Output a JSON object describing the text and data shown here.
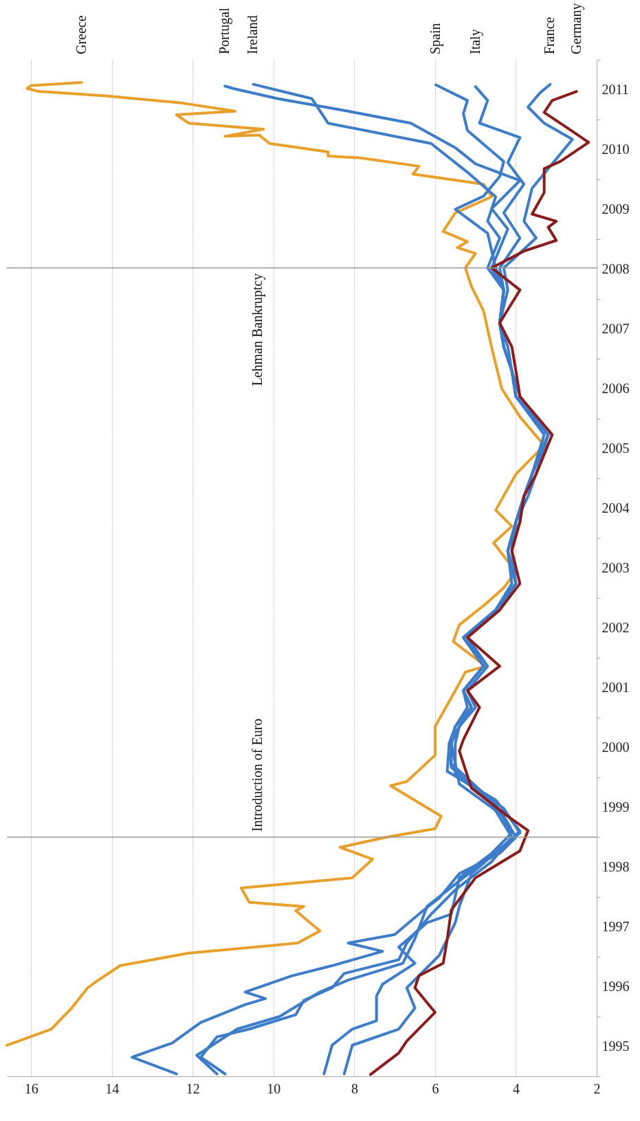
{
  "chart_data": {
    "type": "line",
    "ylim": [
      1995,
      2012
    ],
    "xlim": [
      16.6,
      2
    ],
    "xticks": [
      16,
      14,
      12,
      10,
      8,
      6,
      4,
      2
    ],
    "yticks": [
      {
        "value": 1995,
        "label": null
      },
      {
        "value": 1995.5,
        "label": "1995"
      },
      {
        "value": 1996,
        "label": null
      },
      {
        "value": 1996.5,
        "label": "1996"
      },
      {
        "value": 1997,
        "label": null
      },
      {
        "value": 1997.5,
        "label": "1997"
      },
      {
        "value": 1998,
        "label": null
      },
      {
        "value": 1998.5,
        "label": "1998"
      },
      {
        "value": 1999,
        "label": null
      },
      {
        "value": 1999.5,
        "label": "1999"
      },
      {
        "value": 2000,
        "label": null
      },
      {
        "value": 2000.5,
        "label": "2000"
      },
      {
        "value": 2001,
        "label": null
      },
      {
        "value": 2001.5,
        "label": "2001"
      },
      {
        "value": 2002,
        "label": null
      },
      {
        "value": 2002.5,
        "label": "2002"
      },
      {
        "value": 2003,
        "label": null
      },
      {
        "value": 2003.5,
        "label": "2003"
      },
      {
        "value": 2004,
        "label": null
      },
      {
        "value": 2004.5,
        "label": "2004"
      },
      {
        "value": 2005,
        "label": null
      },
      {
        "value": 2005.5,
        "label": "2005"
      },
      {
        "value": 2006,
        "label": null
      },
      {
        "value": 2006.5,
        "label": "2006"
      },
      {
        "value": 2007,
        "label": null
      },
      {
        "value": 2007.5,
        "label": "2007"
      },
      {
        "value": 2008,
        "label": null
      },
      {
        "value": 2008.5,
        "label": "2008"
      },
      {
        "value": 2009,
        "label": null
      },
      {
        "value": 2009.5,
        "label": "2009"
      },
      {
        "value": 2010,
        "label": null
      },
      {
        "value": 2010.5,
        "label": "2010"
      },
      {
        "value": 2011,
        "label": null
      },
      {
        "value": 2011.5,
        "label": "2011"
      },
      {
        "value": 2012,
        "label": null
      }
    ],
    "grid": "x",
    "ref_lines": [
      {
        "axis": "y",
        "value": 1999,
        "label": "Introduction of Euro",
        "color": "#999999"
      },
      {
        "axis": "y",
        "value": 2008.52,
        "label": "Lehman Bankruptcy",
        "color": "#999999"
      }
    ],
    "series": [
      {
        "name": "Greece",
        "color": "#e8a02a",
        "values": [
          1995.52,
          1995.79,
          1996.14,
          1996.48,
          1996.58,
          1996.85,
          1997.06,
          1997.19,
          1997.23,
          1997.43,
          1997.77,
          1997.84,
          1997.91,
          1998.15,
          1998.32,
          1998.63,
          1998.83,
          1999.0,
          1999.14,
          1999.35,
          1999.86,
          1999.93,
          2000.37,
          2000.85,
          2001.45,
          2001.76,
          2001.86,
          2002.27,
          2002.55,
          2002.9,
          2003.17,
          2003.44,
          2003.92,
          2004.2,
          2004.47,
          2005.07,
          2005.55,
          2006.03,
          2006.5,
          2006.64,
          2007.19,
          2007.8,
          2008.21,
          2008.52,
          2008.76,
          2008.86,
          2008.96,
          2009.13,
          2009.44,
          2009.71,
          2009.92,
          2010.09,
          2010.22,
          2010.36,
          2010.39,
          2010.46,
          2010.6,
          2010.74,
          2010.72,
          2010.84,
          2010.94,
          2011.08,
          2011.14,
          2011.28,
          2011.4,
          2011.47,
          2011.52,
          2011.57,
          2011.62
        ],
        "x": [
          16.6,
          15.5,
          15.0,
          14.6,
          14.4,
          13.8,
          12.1,
          10.0,
          9.4,
          8.85,
          9.45,
          9.25,
          10.6,
          10.8,
          8.05,
          7.55,
          8.35,
          7.2,
          6.0,
          5.85,
          7.1,
          6.7,
          6.0,
          6.0,
          5.5,
          5.25,
          4.75,
          5.55,
          5.4,
          4.75,
          4.3,
          4.0,
          4.55,
          4.1,
          4.5,
          4.0,
          3.3,
          3.9,
          4.35,
          4.4,
          4.6,
          4.8,
          5.1,
          5.25,
          5.0,
          5.45,
          5.2,
          5.8,
          5.5,
          4.6,
          4.8,
          6.55,
          6.4,
          7.85,
          8.65,
          8.65,
          10.1,
          10.35,
          11.2,
          10.25,
          12.1,
          12.4,
          10.95,
          12.3,
          14.2,
          15.8,
          16.1,
          16.0,
          14.75
        ]
      },
      {
        "name": "Portugal",
        "color": "#3d7cc9",
        "values": [
          1995.04,
          1995.35,
          1995.79,
          1996.0,
          1996.41,
          1996.61,
          1996.89,
          1997.3,
          1997.84,
          1998.32,
          1998.8,
          1999.1,
          1999.62,
          2000.1,
          2000.57,
          2000.85,
          2001.17,
          2001.45,
          2001.86,
          2002.34,
          2002.8,
          2003.24,
          2003.79,
          2004.27,
          2004.7,
          2005.07,
          2005.73,
          2006.37,
          2006.8,
          2007.2,
          2007.6,
          2008.15,
          2008.52,
          2009.17,
          2009.51,
          2009.98,
          2010.26,
          2010.53,
          2010.94,
          2011.14,
          2011.35,
          2011.52,
          2011.56
        ],
        "x": [
          11.4,
          11.9,
          10.9,
          9.85,
          8.85,
          8.15,
          6.8,
          6.5,
          6.2,
          5.3,
          4.4,
          3.9,
          4.5,
          5.7,
          5.65,
          5.4,
          5.1,
          5.3,
          4.8,
          5.3,
          4.5,
          4.0,
          4.2,
          4.0,
          3.8,
          3.6,
          3.2,
          4.0,
          4.1,
          4.3,
          4.4,
          4.3,
          4.6,
          4.2,
          4.6,
          3.9,
          5.0,
          5.5,
          6.6,
          8.15,
          9.9,
          11.0,
          11.2
        ]
      },
      {
        "name": "Ireland",
        "color": "#3d7cc9",
        "values": [
          1995.04,
          1995.52,
          1995.79,
          1995.93,
          1996.34,
          1996.54,
          1996.89,
          1997.16,
          1997.57,
          1997.71,
          1998.32,
          1998.73,
          1999.07,
          1999.55,
          2000.23,
          2000.57,
          2000.85,
          2001.17,
          2001.45,
          2001.86,
          2002.34,
          2002.8,
          2003.24,
          2003.79,
          2004.27,
          2004.7,
          2005.07,
          2005.73,
          2006.37,
          2006.8,
          2007.2,
          2007.6,
          2008.15,
          2008.52,
          2009.02,
          2009.3,
          2009.71,
          2010.12,
          2010.6,
          2010.94,
          2011.35,
          2011.59
        ],
        "x": [
          8.75,
          8.55,
          8.05,
          7.45,
          7.45,
          7.3,
          6.5,
          6.9,
          6.2,
          5.6,
          5.4,
          4.6,
          4.1,
          4.5,
          5.6,
          5.6,
          5.5,
          5.1,
          5.3,
          4.8,
          5.2,
          4.5,
          4.0,
          4.2,
          3.9,
          3.8,
          3.6,
          3.2,
          4.0,
          4.1,
          4.3,
          4.4,
          4.3,
          4.7,
          4.4,
          4.7,
          4.5,
          5.2,
          6.1,
          8.65,
          9.05,
          10.5
        ]
      },
      {
        "name": "Spain",
        "color": "#3d7cc9",
        "values": [
          1995.04,
          1995.32,
          1995.66,
          1995.79,
          1996.03,
          1996.27,
          1996.48,
          1996.72,
          1996.95,
          1997.23,
          1997.71,
          1998.12,
          1998.59,
          1999.0,
          1999.55,
          2000.17,
          2000.57,
          2000.85,
          2001.17,
          2001.45,
          2001.86,
          2002.34,
          2002.8,
          2003.24,
          2003.79,
          2004.27,
          2004.7,
          2005.07,
          2005.73,
          2006.37,
          2006.8,
          2007.2,
          2007.6,
          2008.15,
          2008.52,
          2009.1,
          2009.5,
          2009.72,
          2010.05,
          2010.3,
          2010.82,
          2011.1,
          2011.32,
          2011.58
        ],
        "x": [
          11.2,
          11.8,
          11.4,
          10.6,
          9.45,
          9.25,
          8.55,
          8.25,
          6.9,
          6.7,
          6.1,
          5.5,
          4.6,
          4.1,
          4.6,
          5.6,
          5.65,
          5.5,
          5.2,
          5.3,
          4.8,
          5.3,
          4.5,
          4.1,
          4.2,
          4.0,
          3.8,
          3.6,
          3.3,
          4.0,
          4.1,
          4.3,
          4.4,
          4.3,
          4.5,
          4.7,
          5.5,
          4.8,
          4.4,
          4.3,
          5.2,
          5.3,
          5.2,
          5.98
        ]
      },
      {
        "name": "Italy",
        "color": "#3d7cc9",
        "values": [
          1995.04,
          1995.32,
          1995.56,
          1995.9,
          1996.2,
          1996.3,
          1996.41,
          1996.68,
          1996.85,
          1997.09,
          1997.23,
          1997.37,
          1997.77,
          1997.98,
          1998.39,
          1998.73,
          1999.0,
          1999.35,
          1999.89,
          2000.57,
          2000.85,
          2001.17,
          2001.45,
          2001.86,
          2002.34,
          2002.8,
          2003.24,
          2003.79,
          2004.27,
          2004.7,
          2005.07,
          2005.73,
          2006.37,
          2006.8,
          2007.2,
          2007.6,
          2008.15,
          2008.52,
          2009.02,
          2009.44,
          2009.92,
          2010.28,
          2010.7,
          2010.94,
          2011.32,
          2011.55
        ],
        "x": [
          12.4,
          13.5,
          12.5,
          11.8,
          10.7,
          10.2,
          10.7,
          9.55,
          8.55,
          7.3,
          8.15,
          7.0,
          6.3,
          5.9,
          5.4,
          4.4,
          4.0,
          4.3,
          5.4,
          5.6,
          5.4,
          5.1,
          5.3,
          4.8,
          5.3,
          4.5,
          4.0,
          4.2,
          4.0,
          3.8,
          3.6,
          3.2,
          4.0,
          4.1,
          4.3,
          4.4,
          4.3,
          4.4,
          3.9,
          4.3,
          3.8,
          4.2,
          3.9,
          4.9,
          4.7,
          5.0
        ]
      },
      {
        "name": "France",
        "color": "#3d7cc9",
        "values": [
          1995.04,
          1995.52,
          1995.79,
          1996.14,
          1996.48,
          1997.02,
          1997.57,
          1997.84,
          1998.39,
          1998.8,
          1999.07,
          1999.48,
          2000.03,
          2000.57,
          2000.85,
          2001.17,
          2001.45,
          2001.86,
          2002.34,
          2002.8,
          2003.24,
          2003.79,
          2004.27,
          2004.7,
          2005.07,
          2005.73,
          2006.37,
          2006.8,
          2007.2,
          2007.6,
          2008.15,
          2008.52,
          2009.02,
          2009.3,
          2009.85,
          2010.26,
          2010.67,
          2010.94,
          2011.21,
          2011.45,
          2011.59
        ],
        "x": [
          8.25,
          8.05,
          6.9,
          6.5,
          6.7,
          5.9,
          5.5,
          5.4,
          5.1,
          4.4,
          3.9,
          4.3,
          5.5,
          5.5,
          5.4,
          5.0,
          5.2,
          4.7,
          5.2,
          4.4,
          4.0,
          4.1,
          4.0,
          3.7,
          3.5,
          3.2,
          3.9,
          4.1,
          4.2,
          4.4,
          4.2,
          4.3,
          3.5,
          3.8,
          3.6,
          3.1,
          2.6,
          3.3,
          3.7,
          3.4,
          3.15
        ]
      },
      {
        "name": "Germany",
        "color": "#8b1c1c",
        "values": [
          1995.03,
          1995.39,
          1995.59,
          1996.07,
          1996.48,
          1996.68,
          1996.89,
          1997.29,
          1997.78,
          1998.32,
          1998.77,
          1999.11,
          1999.35,
          1999.82,
          2000.44,
          2000.63,
          2001.17,
          2001.45,
          2001.86,
          2002.34,
          2002.8,
          2003.24,
          2003.79,
          2004.27,
          2004.7,
          2005.07,
          2005.73,
          2006.37,
          2006.8,
          2007.2,
          2007.6,
          2008.15,
          2008.52,
          2008.8,
          2008.98,
          2009.2,
          2009.3,
          2009.42,
          2009.78,
          2010.18,
          2010.3,
          2010.62,
          2010.85,
          2011.12,
          2011.32,
          2011.47
        ],
        "x": [
          7.6,
          6.9,
          6.7,
          6.0,
          6.5,
          6.4,
          5.8,
          5.7,
          5.6,
          5.0,
          3.9,
          3.7,
          4.2,
          5.1,
          5.4,
          5.3,
          4.9,
          5.2,
          4.4,
          5.2,
          4.4,
          3.9,
          4.1,
          3.9,
          3.8,
          3.5,
          3.1,
          3.9,
          4.0,
          4.1,
          4.4,
          3.9,
          4.6,
          3.8,
          3.0,
          3.2,
          3.0,
          3.6,
          3.3,
          3.3,
          2.9,
          2.2,
          2.7,
          3.3,
          3.1,
          2.5
        ]
      }
    ]
  }
}
